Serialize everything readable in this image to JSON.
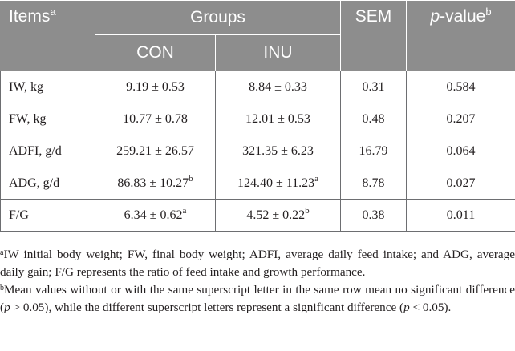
{
  "table": {
    "header": {
      "items": "Items",
      "items_sup": "a",
      "groups": "Groups",
      "sem": "SEM",
      "pvalue_p": "p",
      "pvalue_rest": "-value",
      "pvalue_sup": "b",
      "subgroups": [
        "CON",
        "INU"
      ]
    },
    "rows": [
      {
        "label": "IW, kg",
        "con": "9.19 ± 0.53",
        "con_sup": "",
        "inu": "8.84 ± 0.33",
        "inu_sup": "",
        "sem": "0.31",
        "p": "0.584"
      },
      {
        "label": "FW, kg",
        "con": "10.77 ± 0.78",
        "con_sup": "",
        "inu": "12.01 ± 0.53",
        "inu_sup": "",
        "sem": "0.48",
        "p": "0.207"
      },
      {
        "label": "ADFI, g/d",
        "con": "259.21 ± 26.57",
        "con_sup": "",
        "inu": "321.35 ± 6.23",
        "inu_sup": "",
        "sem": "16.79",
        "p": "0.064"
      },
      {
        "label": "ADG, g/d",
        "con": "86.83 ± 10.27",
        "con_sup": "b",
        "inu": "124.40 ± 11.23",
        "inu_sup": "a",
        "sem": "8.78",
        "p": "0.027"
      },
      {
        "label": "F/G",
        "con": "6.34 ± 0.62",
        "con_sup": "a",
        "inu": "4.52 ± 0.22",
        "inu_sup": "b",
        "sem": "0.38",
        "p": "0.011"
      }
    ]
  },
  "footnotes": {
    "a_mark": "a",
    "a_text": "IW initial body weight; FW, final body weight; ADFI, average daily feed intake; and ADG, average daily gain; F/G represents the ratio of feed intake and growth performance.",
    "b_mark": "b",
    "b_text_1": "Mean values without or with the same superscript letter in the same row mean no significant difference (",
    "b_p1": "p",
    "b_text_2": " > 0.05), while the different superscript letters represent a significant difference (",
    "b_p2": "p",
    "b_text_3": " < 0.05)."
  }
}
